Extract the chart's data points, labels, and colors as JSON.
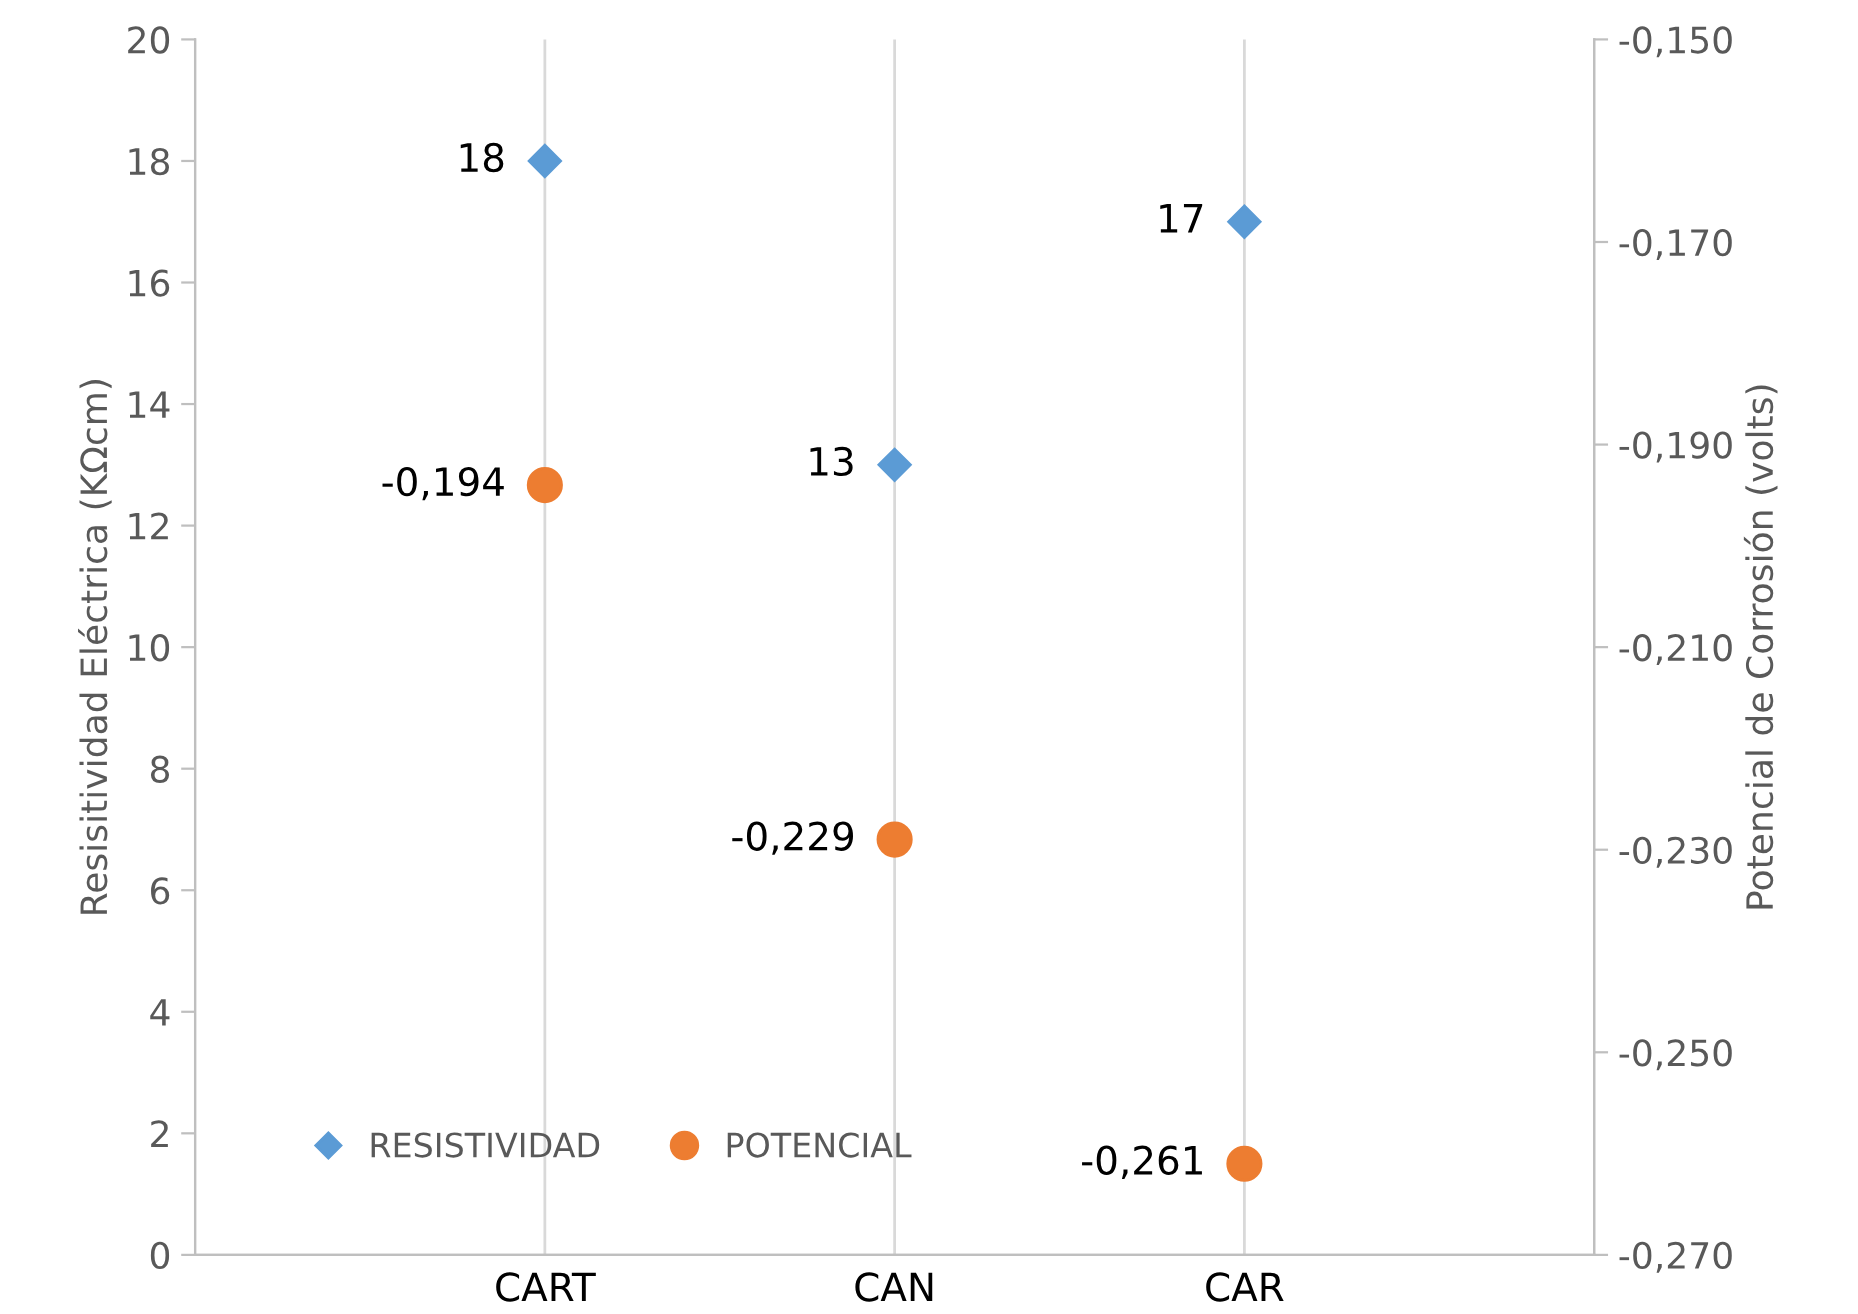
{
  "chart_data": {
    "type": "scatter",
    "ylabel": "Resisitividad Eléctrica (KΩcm)",
    "y2label": "Potencial de Corrosión (volts)",
    "categories": [
      "CART",
      "CAN",
      "CAR"
    ],
    "series": [
      {
        "name": "RESISTIVIDAD",
        "color": "#5b9bd5",
        "marker": "diamond",
        "values": [
          18,
          13,
          17
        ],
        "value_labels": [
          "18",
          "13",
          "17"
        ]
      },
      {
        "name": "POTENCIAL",
        "color": "#ed7d31",
        "marker": "circle",
        "axis": "y2",
        "values": [
          -0.194,
          -0.229,
          -0.261
        ],
        "value_labels": [
          "-0,194",
          "-0,229",
          "-0,261"
        ]
      }
    ],
    "ylim": [
      0,
      20
    ],
    "yticks": [
      0,
      2,
      4,
      6,
      8,
      10,
      12,
      14,
      16,
      18,
      20
    ],
    "y2lim": [
      -0.27,
      -0.15
    ],
    "y2ticks": [
      {
        "value": -0.27,
        "label": "-0,270"
      },
      {
        "value": -0.25,
        "label": "-0,250"
      },
      {
        "value": -0.23,
        "label": "-0,230"
      },
      {
        "value": -0.21,
        "label": "-0,210"
      },
      {
        "value": -0.19,
        "label": "-0,190"
      },
      {
        "value": -0.17,
        "label": "-0,170"
      },
      {
        "value": -0.15,
        "label": "-0,150"
      }
    ],
    "grid": "x",
    "legend": "bottom left"
  }
}
